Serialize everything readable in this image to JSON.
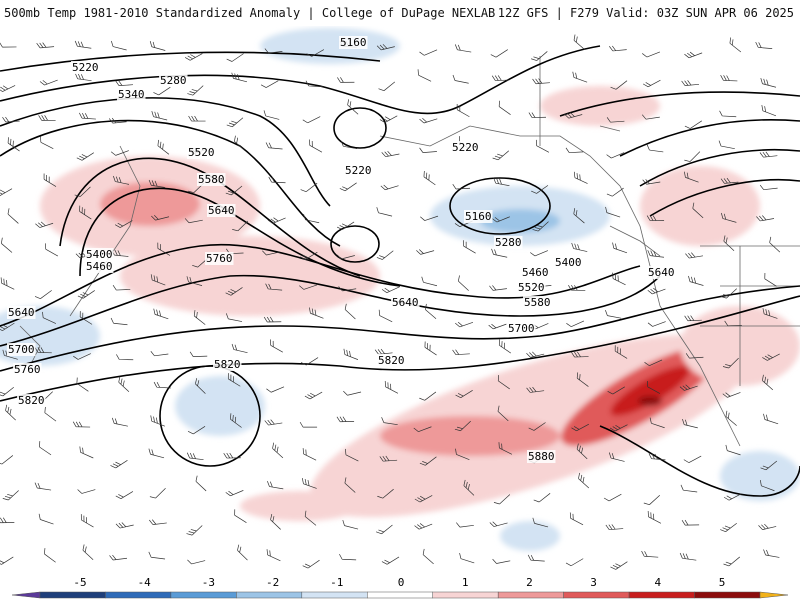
{
  "header": {
    "title_left": "500mb Temp 1981-2010 Standardized Anomaly | College of DuPage NEXLAB",
    "title_right": "12Z GFS | F279 Valid: 03Z SUN APR 06 2025"
  },
  "contour_labels": [
    "5160",
    "5220",
    "5280",
    "5340",
    "5520",
    "5580",
    "5640",
    "5220",
    "5220",
    "5160",
    "5280",
    "5400",
    "5460",
    "5520",
    "5580",
    "5640",
    "5700",
    "5760",
    "5820",
    "5400",
    "5460",
    "5640",
    "5640",
    "5700",
    "5760",
    "5820",
    "5820",
    "5880"
  ],
  "colorbar": {
    "ticks": [
      "-5",
      "-4",
      "-3",
      "-2",
      "-1",
      "0",
      "1",
      "2",
      "3",
      "4",
      "5"
    ],
    "colors": [
      "#5b3a99",
      "#1f3f7a",
      "#2f6bb8",
      "#5a9bd6",
      "#9cc4e6",
      "#d3e3f3",
      "#ffffff",
      "#f7d4d4",
      "#ee9999",
      "#e05a5a",
      "#c81e1e",
      "#8c0d0d",
      "#f2b21a"
    ]
  }
}
